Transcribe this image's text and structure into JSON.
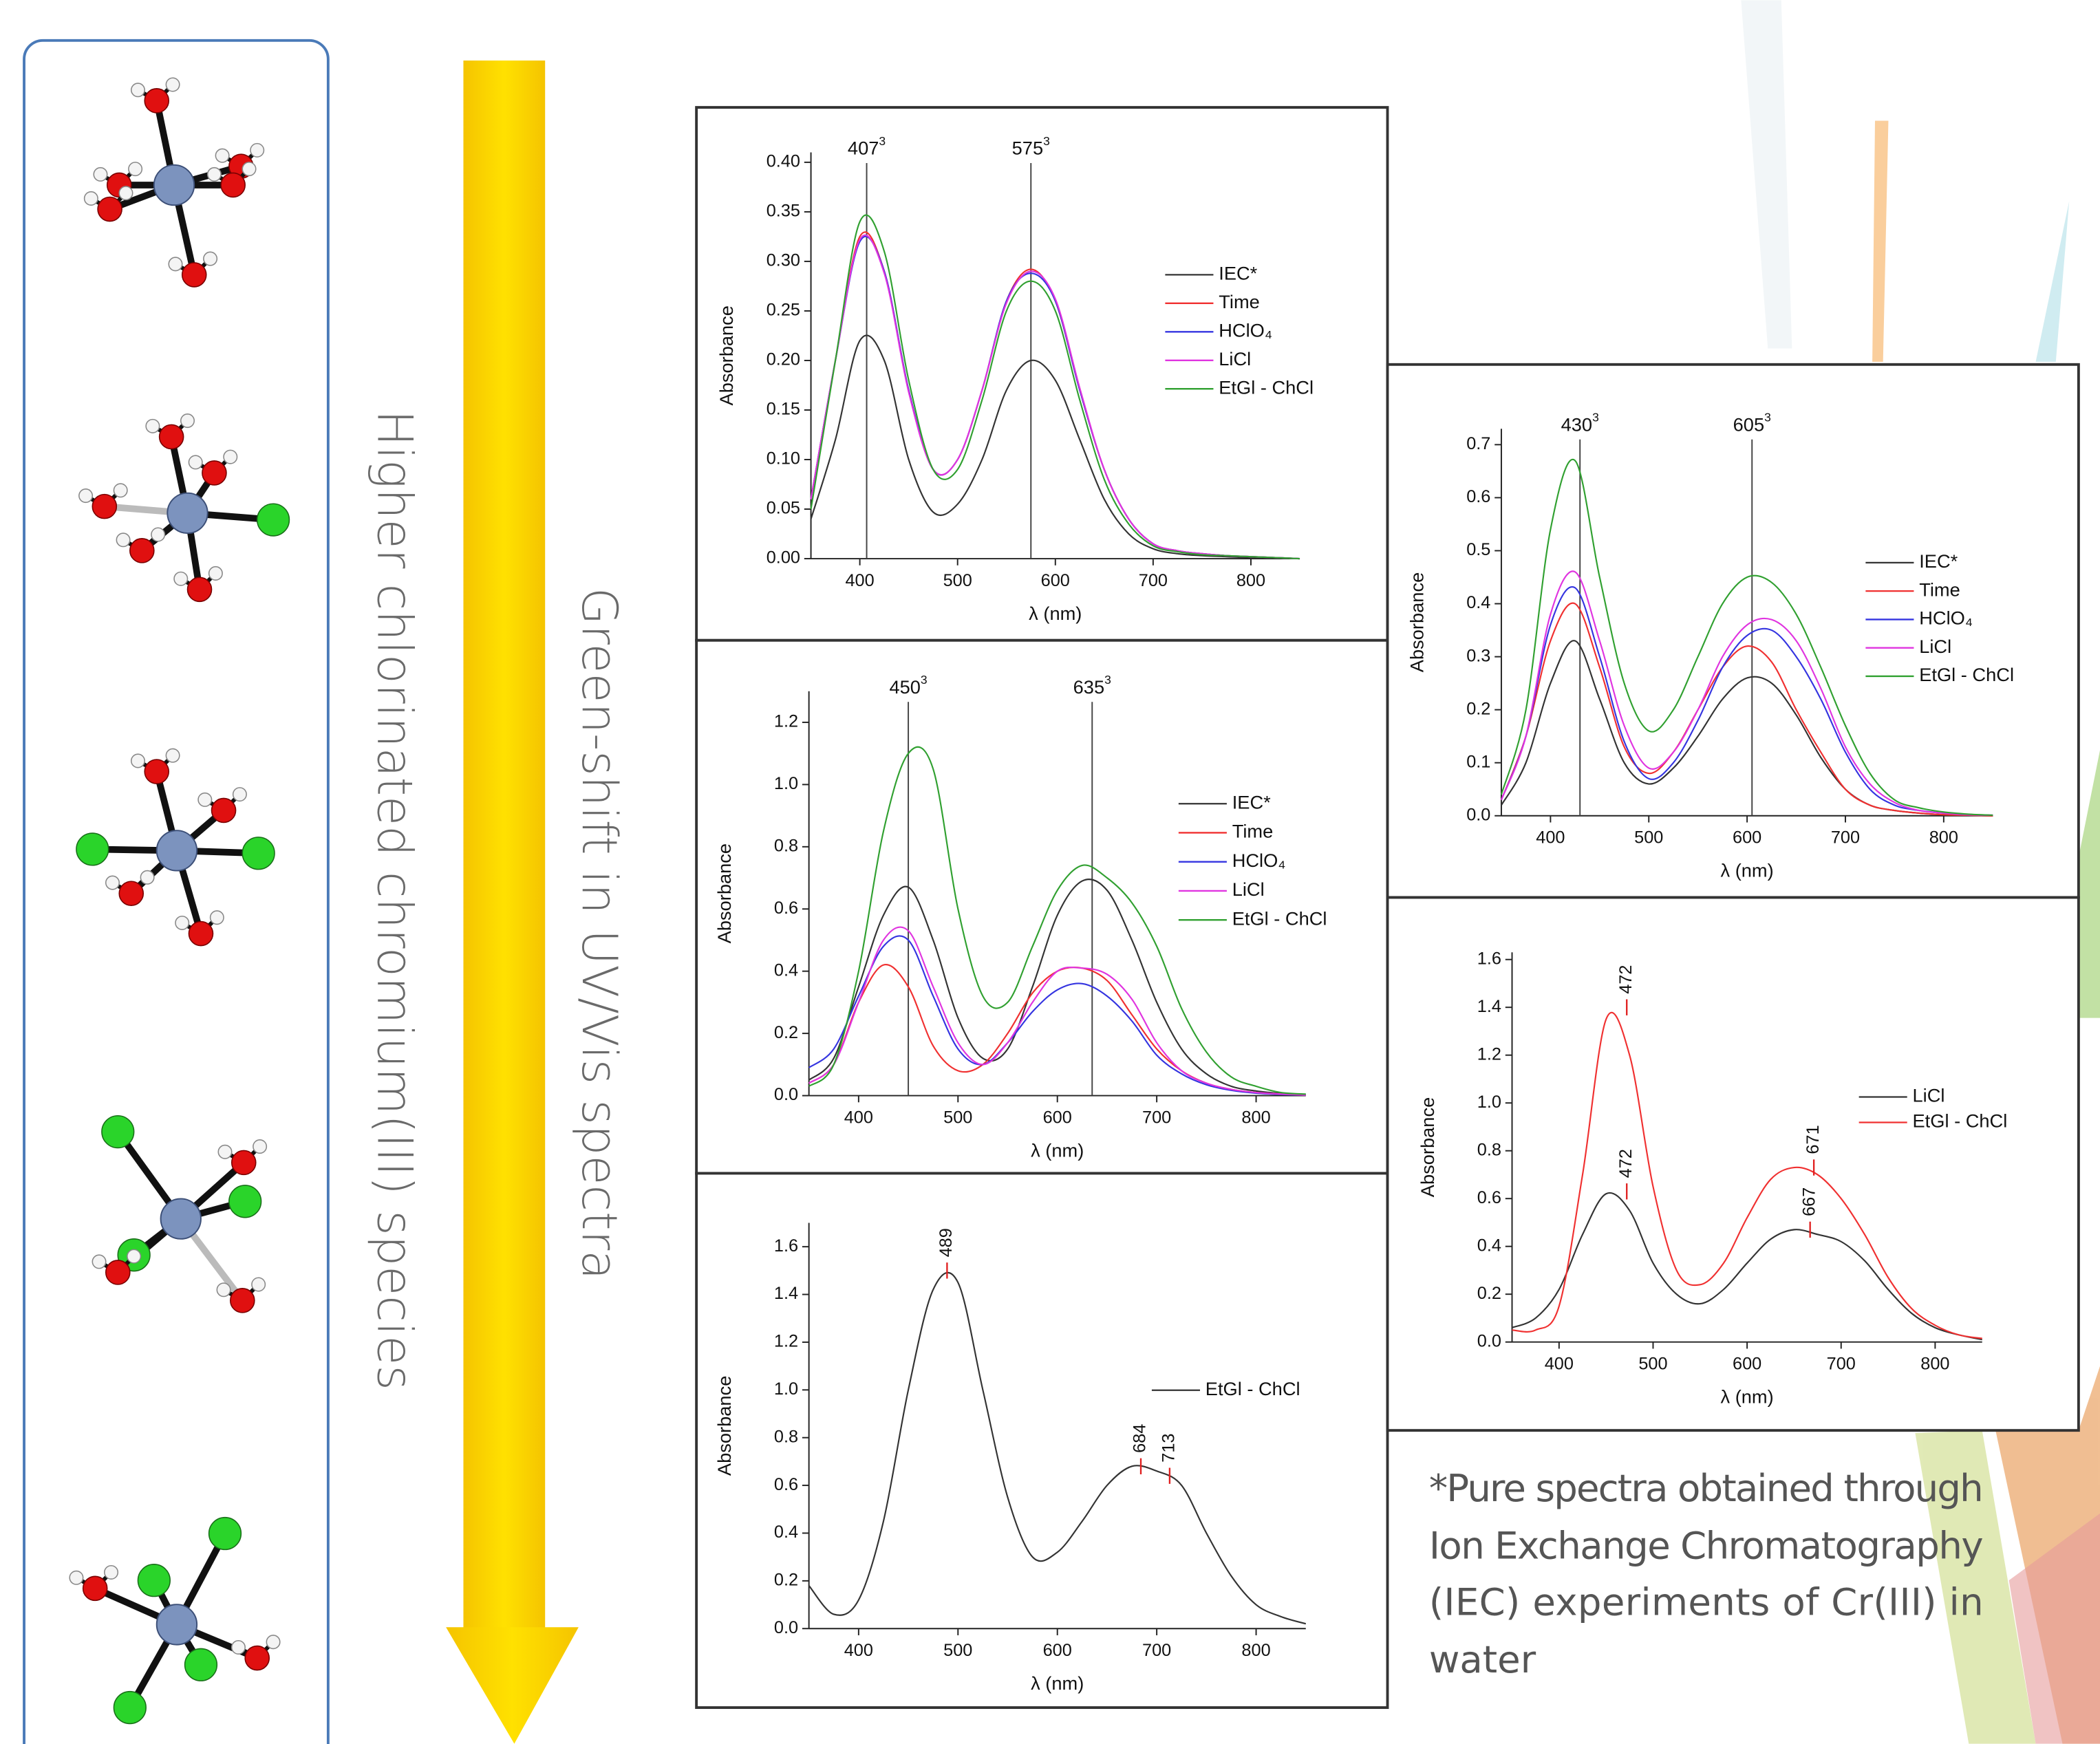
{
  "chart_data": [
    {
      "type": "line",
      "xlabel": "λ (nm)",
      "ylabel": "Absorbance",
      "legend": "right",
      "xlim": [
        350,
        850
      ],
      "xticks": [
        400,
        500,
        600,
        700,
        800
      ],
      "ylim": [
        0,
        0.41
      ],
      "yticks": [
        {
          "value": 0,
          "label": "0.00"
        },
        {
          "value": 0.05,
          "label": "0.05"
        },
        {
          "value": 0.1,
          "label": "0.10"
        },
        {
          "value": 0.15,
          "label": "0.15"
        },
        {
          "value": 0.2,
          "label": "0.20"
        },
        {
          "value": 0.25,
          "label": "0.25"
        },
        {
          "value": 0.3,
          "label": "0.30"
        },
        {
          "value": 0.35,
          "label": "0.35"
        },
        {
          "value": 0.4,
          "label": "0.40"
        }
      ],
      "peak_lines": [
        {
          "x": 407,
          "sup": "3"
        },
        {
          "x": 575,
          "sup": "3"
        }
      ],
      "x": [
        350,
        375,
        400,
        425,
        450,
        475,
        500,
        525,
        550,
        575,
        600,
        625,
        650,
        675,
        700,
        725,
        750,
        775,
        800,
        825,
        850
      ],
      "series": [
        {
          "name": "IEC*",
          "color": "#333333",
          "values": [
            0.04,
            0.12,
            0.22,
            0.2,
            0.1,
            0.047,
            0.055,
            0.1,
            0.17,
            0.2,
            0.18,
            0.12,
            0.06,
            0.025,
            0.01,
            0.005,
            0.003,
            0.002,
            0.001,
            0.001,
            0
          ]
        },
        {
          "name": "Time",
          "color": "#f03030",
          "values": [
            0.06,
            0.2,
            0.325,
            0.29,
            0.17,
            0.09,
            0.1,
            0.17,
            0.26,
            0.292,
            0.26,
            0.17,
            0.09,
            0.04,
            0.015,
            0.008,
            0.005,
            0.003,
            0.002,
            0.001,
            0
          ]
        },
        {
          "name": "HClO₄",
          "color": "#3434e0",
          "values": [
            0.06,
            0.2,
            0.32,
            0.29,
            0.17,
            0.09,
            0.1,
            0.17,
            0.26,
            0.288,
            0.26,
            0.17,
            0.09,
            0.04,
            0.015,
            0.008,
            0.005,
            0.003,
            0.002,
            0.001,
            0
          ]
        },
        {
          "name": "LiCl",
          "color": "#e034e0",
          "values": [
            0.06,
            0.2,
            0.322,
            0.288,
            0.168,
            0.09,
            0.1,
            0.17,
            0.258,
            0.29,
            0.262,
            0.172,
            0.09,
            0.04,
            0.015,
            0.008,
            0.005,
            0.003,
            0.002,
            0.001,
            0
          ]
        },
        {
          "name": "EtGl - ChCl",
          "color": "#30a030",
          "values": [
            0.05,
            0.2,
            0.34,
            0.31,
            0.18,
            0.09,
            0.09,
            0.16,
            0.25,
            0.28,
            0.25,
            0.16,
            0.08,
            0.035,
            0.013,
            0.007,
            0.004,
            0.003,
            0.002,
            0.001,
            0
          ]
        }
      ]
    },
    {
      "type": "line",
      "xlabel": "λ (nm)",
      "ylabel": "Absorbance",
      "legend": "right",
      "xlim": [
        350,
        850
      ],
      "xticks": [
        400,
        500,
        600,
        700,
        800
      ],
      "ylim": [
        0,
        1.3
      ],
      "yticks": [
        {
          "value": 0,
          "label": "0.0"
        },
        0.2,
        0.4,
        0.6,
        0.8,
        {
          "value": 1,
          "label": "1.0"
        },
        1.2
      ],
      "peak_lines": [
        {
          "x": 450,
          "sup": "3"
        },
        {
          "x": 635,
          "sup": "3"
        }
      ],
      "x": [
        350,
        375,
        400,
        425,
        450,
        475,
        500,
        525,
        550,
        575,
        600,
        625,
        650,
        675,
        700,
        725,
        750,
        775,
        800,
        825,
        850
      ],
      "series": [
        {
          "name": "IEC*",
          "color": "#333333",
          "values": [
            0.05,
            0.12,
            0.35,
            0.58,
            0.67,
            0.5,
            0.25,
            0.12,
            0.15,
            0.35,
            0.58,
            0.69,
            0.66,
            0.5,
            0.3,
            0.15,
            0.07,
            0.03,
            0.015,
            0.007,
            0.003
          ]
        },
        {
          "name": "Time",
          "color": "#f03030",
          "values": [
            0.04,
            0.1,
            0.3,
            0.42,
            0.35,
            0.16,
            0.08,
            0.1,
            0.2,
            0.33,
            0.4,
            0.41,
            0.37,
            0.26,
            0.15,
            0.08,
            0.04,
            0.02,
            0.01,
            0.005,
            0.002
          ]
        },
        {
          "name": "HClO₄",
          "color": "#3434e0",
          "values": [
            0.09,
            0.15,
            0.32,
            0.48,
            0.5,
            0.32,
            0.15,
            0.1,
            0.17,
            0.27,
            0.34,
            0.36,
            0.32,
            0.24,
            0.13,
            0.07,
            0.035,
            0.017,
            0.008,
            0.004,
            0.002
          ]
        },
        {
          "name": "LiCl",
          "color": "#e034e0",
          "values": [
            0.04,
            0.1,
            0.3,
            0.5,
            0.53,
            0.35,
            0.17,
            0.1,
            0.17,
            0.3,
            0.4,
            0.41,
            0.39,
            0.31,
            0.17,
            0.08,
            0.04,
            0.02,
            0.01,
            0.005,
            0.002
          ]
        },
        {
          "name": "EtGl - ChCl",
          "color": "#30a030",
          "values": [
            0.03,
            0.1,
            0.4,
            0.85,
            1.1,
            1.05,
            0.6,
            0.32,
            0.3,
            0.48,
            0.66,
            0.74,
            0.7,
            0.62,
            0.48,
            0.28,
            0.14,
            0.06,
            0.03,
            0.01,
            0.005
          ]
        }
      ]
    },
    {
      "type": "line",
      "xlabel": "λ (nm)",
      "ylabel": "Absorbance",
      "legend": "right",
      "xlim": [
        350,
        850
      ],
      "xticks": [
        400,
        500,
        600,
        700,
        800
      ],
      "ylim": [
        0,
        1.7
      ],
      "yticks": [
        {
          "value": 0,
          "label": "0.0"
        },
        0.2,
        0.4,
        0.6,
        0.8,
        {
          "value": 1,
          "label": "1.0"
        },
        1.2,
        1.4,
        1.6
      ],
      "x": [
        350,
        375,
        400,
        425,
        450,
        475,
        500,
        525,
        550,
        575,
        600,
        625,
        650,
        675,
        700,
        725,
        750,
        775,
        800,
        825,
        850
      ],
      "series": [
        {
          "name": "EtGl - ChCl",
          "color": "#333333",
          "values": [
            0.18,
            0.06,
            0.12,
            0.45,
            1.0,
            1.42,
            1.45,
            1.0,
            0.55,
            0.3,
            0.32,
            0.45,
            0.6,
            0.68,
            0.66,
            0.6,
            0.4,
            0.22,
            0.1,
            0.05,
            0.02
          ],
          "peaks": [
            {
              "x": 489,
              "y": 1.5
            },
            {
              "x": 684,
              "y": 0.68
            },
            {
              "x": 713,
              "y": 0.64
            }
          ]
        }
      ]
    },
    {
      "type": "line",
      "xlabel": "λ (nm)",
      "ylabel": "Absorbance",
      "legend": "right",
      "xlim": [
        350,
        850
      ],
      "xticks": [
        400,
        500,
        600,
        700,
        800
      ],
      "ylim": [
        0,
        0.73
      ],
      "yticks": [
        {
          "value": 0,
          "label": "0.0"
        },
        0.1,
        0.2,
        0.3,
        0.4,
        0.5,
        0.6,
        0.7
      ],
      "peak_lines": [
        {
          "x": 430,
          "sup": "3"
        },
        {
          "x": 605,
          "sup": "3"
        }
      ],
      "x": [
        350,
        375,
        400,
        425,
        450,
        475,
        500,
        525,
        550,
        575,
        600,
        625,
        650,
        675,
        700,
        725,
        750,
        775,
        800,
        825,
        850
      ],
      "series": [
        {
          "name": "IEC*",
          "color": "#333333",
          "values": [
            0.02,
            0.1,
            0.25,
            0.33,
            0.22,
            0.1,
            0.06,
            0.09,
            0.15,
            0.22,
            0.26,
            0.25,
            0.19,
            0.11,
            0.05,
            0.02,
            0.01,
            0.005,
            0.002,
            0.001,
            0
          ]
        },
        {
          "name": "Time",
          "color": "#f03030",
          "values": [
            0.03,
            0.15,
            0.33,
            0.4,
            0.28,
            0.13,
            0.08,
            0.12,
            0.2,
            0.28,
            0.32,
            0.29,
            0.2,
            0.12,
            0.05,
            0.02,
            0.01,
            0.005,
            0.002,
            0.001,
            0
          ]
        },
        {
          "name": "HClO₄",
          "color": "#3434e0",
          "values": [
            0.03,
            0.15,
            0.36,
            0.43,
            0.3,
            0.14,
            0.07,
            0.1,
            0.18,
            0.28,
            0.34,
            0.35,
            0.3,
            0.22,
            0.12,
            0.05,
            0.02,
            0.01,
            0.005,
            0.002,
            0.001
          ]
        },
        {
          "name": "LiCl",
          "color": "#e034e0",
          "values": [
            0.03,
            0.15,
            0.38,
            0.46,
            0.33,
            0.17,
            0.09,
            0.12,
            0.2,
            0.3,
            0.36,
            0.37,
            0.33,
            0.24,
            0.13,
            0.06,
            0.025,
            0.01,
            0.005,
            0.002,
            0.001
          ]
        },
        {
          "name": "EtGl - ChCl",
          "color": "#30a030",
          "values": [
            0.04,
            0.2,
            0.54,
            0.67,
            0.45,
            0.25,
            0.16,
            0.2,
            0.3,
            0.4,
            0.45,
            0.44,
            0.38,
            0.28,
            0.17,
            0.08,
            0.03,
            0.015,
            0.007,
            0.003,
            0.001
          ]
        }
      ]
    },
    {
      "type": "line",
      "xlabel": "λ (nm)",
      "ylabel": "Absorbance",
      "legend": "right",
      "xlim": [
        350,
        850
      ],
      "xticks": [
        400,
        500,
        600,
        700,
        800
      ],
      "ylim": [
        0,
        1.63
      ],
      "yticks": [
        {
          "value": 0,
          "label": "0.0"
        },
        0.2,
        0.4,
        0.6,
        0.8,
        {
          "value": 1,
          "label": "1.0"
        },
        1.2,
        1.4,
        1.6
      ],
      "x": [
        350,
        375,
        400,
        425,
        450,
        475,
        500,
        525,
        550,
        575,
        600,
        625,
        650,
        675,
        700,
        725,
        750,
        775,
        800,
        825,
        850
      ],
      "series": [
        {
          "name": "LiCl",
          "color": "#333333",
          "values": [
            0.06,
            0.1,
            0.22,
            0.45,
            0.62,
            0.55,
            0.33,
            0.2,
            0.16,
            0.22,
            0.33,
            0.43,
            0.47,
            0.45,
            0.42,
            0.34,
            0.22,
            0.12,
            0.06,
            0.03,
            0.01
          ],
          "peaks": [
            {
              "x": 472,
              "y": 0.63
            },
            {
              "x": 667,
              "y": 0.47
            }
          ]
        },
        {
          "name": "EtGl - ChCl",
          "color": "#f03030",
          "values": [
            0.05,
            0.05,
            0.15,
            0.7,
            1.35,
            1.2,
            0.65,
            0.3,
            0.24,
            0.33,
            0.52,
            0.68,
            0.73,
            0.7,
            0.6,
            0.45,
            0.27,
            0.14,
            0.07,
            0.03,
            0.015
          ],
          "peaks": [
            {
              "x": 472,
              "y": 1.4
            },
            {
              "x": 671,
              "y": 0.73
            }
          ]
        }
      ]
    }
  ],
  "side_labels": {
    "species": "Higher chlorinated chromium(III) species",
    "shift": "Green-shift in UV/Vis spectra"
  },
  "footnote": [
    "*Pure spectra obtained through",
    "Ion Exchange Chromatography",
    "(IEC) experiments of Cr(III) in",
    "water"
  ]
}
